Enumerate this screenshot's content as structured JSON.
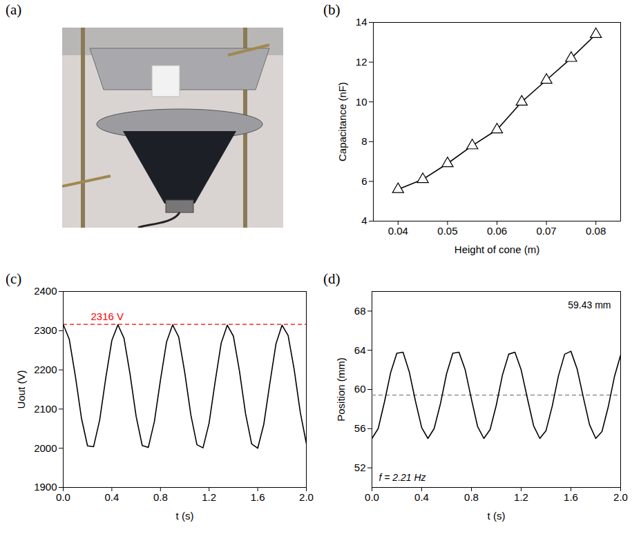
{
  "chart_data": [
    {
      "panel": "(a)",
      "type": "image"
    },
    {
      "panel": "(b)",
      "type": "line",
      "marker": "triangle",
      "line_style": "solid",
      "color": "#000000",
      "xlabel": "Height of cone (m)",
      "ylabel": "Capacitance (nF)",
      "x": [
        0.04,
        0.045,
        0.05,
        0.055,
        0.06,
        0.065,
        0.07,
        0.075,
        0.08
      ],
      "values": [
        5.6,
        6.1,
        6.9,
        7.8,
        8.6,
        10.0,
        11.1,
        12.2,
        13.4
      ],
      "xlim": [
        0.035,
        0.085
      ],
      "xticks": [
        0.04,
        0.05,
        0.06,
        0.07,
        0.08
      ],
      "ylim": [
        4,
        14
      ],
      "yticks": [
        4,
        6,
        8,
        10,
        12,
        14
      ]
    },
    {
      "panel": "(c)",
      "type": "line",
      "line_style": "solid",
      "color": "#000000",
      "xlabel": "t (s)",
      "ylabel": "Uout (V)",
      "x": [
        0,
        0.05,
        0.1,
        0.15,
        0.2,
        0.25,
        0.3,
        0.35,
        0.4,
        0.45,
        0.5,
        0.55,
        0.6,
        0.65,
        0.7,
        0.75,
        0.8,
        0.85,
        0.9,
        0.95,
        1.0,
        1.05,
        1.1,
        1.15,
        1.2,
        1.25,
        1.3,
        1.35,
        1.4,
        1.45,
        1.5,
        1.55,
        1.6,
        1.65,
        1.7,
        1.75,
        1.8,
        1.85,
        1.9,
        1.95,
        2.0
      ],
      "values": [
        2316,
        2278,
        2184,
        2077,
        2006,
        2004,
        2072,
        2179,
        2275,
        2315,
        2281,
        2189,
        2081,
        2007,
        2002,
        2068,
        2174,
        2271,
        2315,
        2284,
        2193,
        2085,
        2009,
        2001,
        2064,
        2170,
        2269,
        2314,
        2286,
        2197,
        2088,
        2011,
        2000,
        2061,
        2166,
        2266,
        2314,
        2288,
        2201,
        2092,
        2012
      ],
      "xlim": [
        0,
        2
      ],
      "xticks": [
        {
          "value": 0,
          "label": "0.0"
        },
        {
          "value": 0.4,
          "label": "0.4"
        },
        {
          "value": 0.8,
          "label": "0.8"
        },
        {
          "value": 1.2,
          "label": "1.2"
        },
        {
          "value": 1.6,
          "label": "1.6"
        },
        {
          "value": 2,
          "label": "2.0"
        }
      ],
      "ylim": [
        1900,
        2400
      ],
      "yticks": [
        1900,
        2000,
        2100,
        2200,
        2300,
        2400
      ],
      "reference_lines": [
        {
          "value": 2316,
          "label": "2316 V",
          "color": "#ff0000",
          "line_style": "dashed"
        }
      ]
    },
    {
      "panel": "(d)",
      "type": "line",
      "line_style": "solid",
      "color": "#000000",
      "xlabel": "t (s)",
      "ylabel": "Position (mm)",
      "x": [
        0,
        0.05,
        0.1,
        0.15,
        0.2,
        0.25,
        0.3,
        0.35,
        0.4,
        0.45,
        0.5,
        0.55,
        0.6,
        0.65,
        0.7,
        0.75,
        0.8,
        0.85,
        0.9,
        0.95,
        1.0,
        1.05,
        1.1,
        1.15,
        1.2,
        1.25,
        1.3,
        1.35,
        1.4,
        1.45,
        1.5,
        1.55,
        1.6,
        1.65,
        1.7,
        1.75,
        1.8,
        1.85,
        1.9,
        1.95,
        2.0
      ],
      "values": [
        55.0,
        56.0,
        58.7,
        61.7,
        63.7,
        63.8,
        61.8,
        58.8,
        56.1,
        55.0,
        56.0,
        58.5,
        61.6,
        63.7,
        63.8,
        62.0,
        59.0,
        56.2,
        55.0,
        55.9,
        58.4,
        61.5,
        63.6,
        63.8,
        62.0,
        59.1,
        56.3,
        55.0,
        55.8,
        58.3,
        61.4,
        63.6,
        63.9,
        62.1,
        59.2,
        56.4,
        55.0,
        55.7,
        58.2,
        61.3,
        63.5
      ],
      "xlim": [
        0,
        2
      ],
      "xticks": [
        {
          "value": 0,
          "label": "0.0"
        },
        {
          "value": 0.4,
          "label": "0.4"
        },
        {
          "value": 0.8,
          "label": "0.8"
        },
        {
          "value": 1.2,
          "label": "1.2"
        },
        {
          "value": 1.6,
          "label": "1.6"
        },
        {
          "value": 2,
          "label": "2.0"
        }
      ],
      "ylim": [
        50,
        70
      ],
      "yticks": [
        52,
        56,
        60,
        64,
        68
      ],
      "reference_lines": [
        {
          "value": 59.43,
          "label": "59.43 mm",
          "color": "#808080",
          "line_style": "dashed"
        }
      ],
      "annotations": [
        {
          "text": "f = 2.21 Hz"
        }
      ]
    }
  ]
}
